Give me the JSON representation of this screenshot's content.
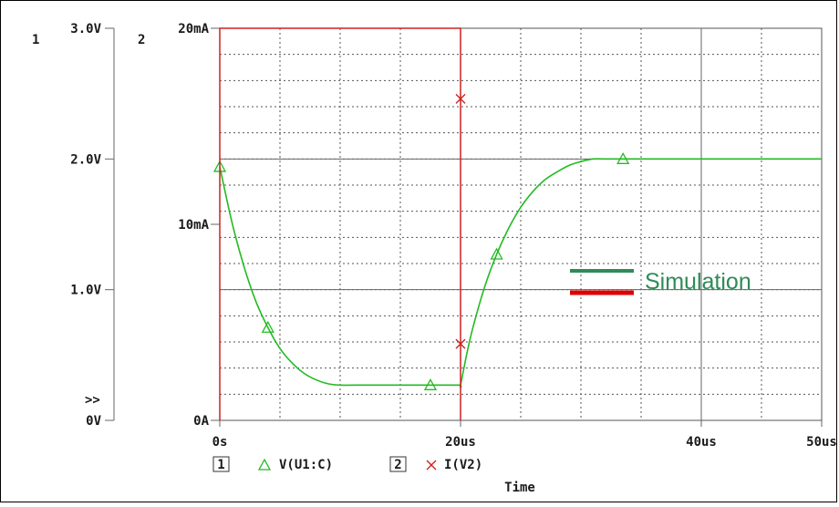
{
  "chart_data": {
    "type": "line",
    "xlabel": "Time",
    "x_ticks": [
      {
        "value": 0,
        "label": "0s"
      },
      {
        "value": 20,
        "label": "20us"
      },
      {
        "value": 40,
        "label": "40us"
      },
      {
        "value": 50,
        "label": "50us"
      }
    ],
    "xlim": [
      0,
      50
    ],
    "grid": true,
    "axis1": {
      "id": "1",
      "ylim": [
        0,
        3
      ],
      "ticks": [
        {
          "value": 0,
          "label": "0V"
        },
        {
          "value": 1,
          "label": "1.0V"
        },
        {
          "value": 2,
          "label": "2.0V"
        },
        {
          "value": 3,
          "label": "3.0V"
        }
      ]
    },
    "axis2": {
      "id": "2",
      "ylim": [
        0,
        20
      ],
      "ticks": [
        {
          "value": 0,
          "label": "0A"
        },
        {
          "value": 10,
          "label": "10mA"
        },
        {
          "value": 20,
          "label": "20mA"
        }
      ]
    },
    "overflow_marker": ">>",
    "series": [
      {
        "name": "V(U1:C)",
        "axis": "1",
        "color": "#22bb22",
        "marker": "triangle",
        "x": [
          0,
          1,
          2,
          3,
          4,
          5,
          6,
          7,
          8,
          9,
          10,
          12,
          14,
          16,
          18,
          19.9,
          20,
          20.5,
          21,
          22,
          23,
          24,
          25,
          26,
          27,
          28,
          29,
          30,
          31,
          32,
          34,
          40,
          50
        ],
        "y": [
          1.94,
          1.52,
          1.18,
          0.91,
          0.71,
          0.55,
          0.44,
          0.36,
          0.31,
          0.28,
          0.27,
          0.27,
          0.27,
          0.27,
          0.27,
          0.27,
          0.27,
          0.5,
          0.7,
          1.02,
          1.27,
          1.47,
          1.63,
          1.75,
          1.84,
          1.9,
          1.95,
          1.98,
          2.0,
          2.0,
          2.0,
          2.0,
          2.0
        ],
        "marker_points": [
          {
            "x": 0,
            "y": 1.94
          },
          {
            "x": 4,
            "y": 0.71
          },
          {
            "x": 17.5,
            "y": 0.27
          },
          {
            "x": 23,
            "y": 1.27
          },
          {
            "x": 33.5,
            "y": 2.0
          }
        ]
      },
      {
        "name": "I(V2)",
        "axis": "2",
        "color": "#cc2222",
        "marker": "x",
        "x": [
          0,
          0,
          20,
          20
        ],
        "y": [
          0,
          20,
          20,
          0
        ],
        "marker_points": [
          {
            "x": 20,
            "y": 16.4
          },
          {
            "x": 20,
            "y": 3.9
          }
        ]
      }
    ],
    "legend": [
      {
        "index": "1",
        "name": "V(U1:C)",
        "marker": "triangle",
        "color": "#22bb22"
      },
      {
        "index": "2",
        "name": "I(V2)",
        "marker": "x",
        "color": "#cc2222"
      }
    ],
    "annotation_legend": {
      "label": "Simulation",
      "colors": [
        "#2e8b57",
        "#e00000"
      ]
    }
  }
}
